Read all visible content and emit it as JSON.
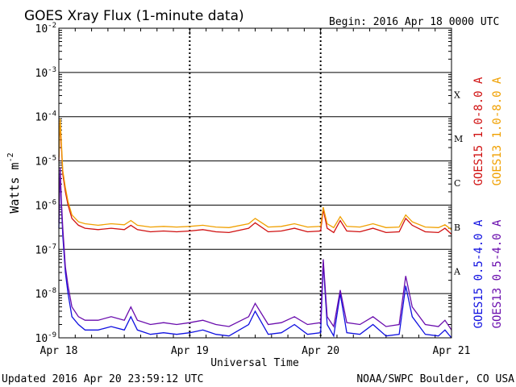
{
  "header": {
    "title": "GOES Xray Flux (1-minute data)",
    "begin": "Begin:  2016 Apr 18 0000 UTC"
  },
  "footer": {
    "updated": "Updated 2016 Apr 20 23:59:12 UTC",
    "credit": "NOAA/SWPC Boulder, CO USA"
  },
  "chart_data": {
    "type": "line",
    "title": "GOES Xray Flux (1-minute data)",
    "xlabel": "Universal Time",
    "ylabel": "Watts m",
    "ylabel_sup": "-2",
    "yscale": "log",
    "ylim": [
      1e-09,
      0.01
    ],
    "xlim": [
      0,
      3
    ],
    "x_unit": "days since 2016 Apr 18 0000 UTC",
    "x_ticks": [
      {
        "x": 0,
        "label": "Apr 18"
      },
      {
        "x": 1,
        "label": "Apr 19"
      },
      {
        "x": 2,
        "label": "Apr 20"
      },
      {
        "x": 3,
        "label": "Apr 21"
      }
    ],
    "y_ticks": [
      {
        "exp": -9,
        "base": "10",
        "sup": "-9"
      },
      {
        "exp": -8,
        "base": "10",
        "sup": "-8"
      },
      {
        "exp": -7,
        "base": "10",
        "sup": "-7"
      },
      {
        "exp": -6,
        "base": "10",
        "sup": "-6"
      },
      {
        "exp": -5,
        "base": "10",
        "sup": "-5"
      },
      {
        "exp": -4,
        "base": "10",
        "sup": "-4"
      },
      {
        "exp": -3,
        "base": "10",
        "sup": "-3"
      },
      {
        "exp": -2,
        "base": "10",
        "sup": "-2"
      }
    ],
    "flare_classes": [
      {
        "label": "A",
        "exp": -7.5
      },
      {
        "label": "B",
        "exp": -6.5
      },
      {
        "label": "C",
        "exp": -5.5
      },
      {
        "label": "M",
        "exp": -4.5
      },
      {
        "label": "X",
        "exp": -3.5
      }
    ],
    "grid": true,
    "legend_right_upper": [
      {
        "name": "GOES15 1.0-8.0 A",
        "color": "#d01010"
      },
      {
        "name": "GOES13 1.0-8.0 A",
        "color": "#f0a000"
      }
    ],
    "legend_right_lower": [
      {
        "name": "GOES15 0.5-4.0 A",
        "color": "#1010e0"
      },
      {
        "name": "GOES13 0.5-4.0 A",
        "color": "#6a0dad"
      }
    ],
    "series": [
      {
        "name": "GOES15 1.0-8.0 A",
        "color": "#d01010",
        "x": [
          0,
          0.01,
          0.02,
          0.03,
          0.05,
          0.07,
          0.1,
          0.15,
          0.2,
          0.3,
          0.4,
          0.5,
          0.55,
          0.6,
          0.7,
          0.8,
          0.9,
          1.0,
          1.1,
          1.2,
          1.3,
          1.45,
          1.5,
          1.6,
          1.7,
          1.8,
          1.9,
          2.0,
          2.02,
          2.05,
          2.1,
          2.15,
          2.2,
          2.3,
          2.4,
          2.5,
          2.6,
          2.65,
          2.7,
          2.8,
          2.9,
          2.95,
          3.0
        ],
        "y": [
          1e-05,
          8e-05,
          2e-05,
          5e-06,
          2e-06,
          1e-06,
          5e-07,
          3.5e-07,
          3e-07,
          2.8e-07,
          3e-07,
          2.8e-07,
          3.5e-07,
          2.8e-07,
          2.5e-07,
          2.6e-07,
          2.5e-07,
          2.6e-07,
          2.8e-07,
          2.5e-07,
          2.4e-07,
          3e-07,
          4e-07,
          2.5e-07,
          2.6e-07,
          3e-07,
          2.5e-07,
          2.6e-07,
          8e-07,
          3e-07,
          2.4e-07,
          4.5e-07,
          2.6e-07,
          2.5e-07,
          3e-07,
          2.4e-07,
          2.5e-07,
          5e-07,
          3.5e-07,
          2.5e-07,
          2.4e-07,
          3e-07,
          2.2e-07
        ]
      },
      {
        "name": "GOES13 1.0-8.0 A",
        "color": "#f0a000",
        "x": [
          0,
          0.01,
          0.02,
          0.03,
          0.05,
          0.07,
          0.1,
          0.15,
          0.2,
          0.3,
          0.4,
          0.5,
          0.55,
          0.6,
          0.7,
          0.8,
          0.9,
          1.0,
          1.1,
          1.2,
          1.3,
          1.45,
          1.5,
          1.6,
          1.7,
          1.8,
          1.9,
          2.0,
          2.02,
          2.05,
          2.1,
          2.15,
          2.2,
          2.3,
          2.4,
          2.5,
          2.6,
          2.65,
          2.7,
          2.8,
          2.9,
          2.95,
          3.0
        ],
        "y": [
          1.2e-05,
          9e-05,
          2.5e-05,
          6e-06,
          2.5e-06,
          1.2e-06,
          6e-07,
          4.2e-07,
          3.8e-07,
          3.5e-07,
          3.8e-07,
          3.6e-07,
          4.5e-07,
          3.5e-07,
          3.2e-07,
          3.3e-07,
          3.2e-07,
          3.3e-07,
          3.5e-07,
          3.2e-07,
          3.1e-07,
          3.8e-07,
          5e-07,
          3.2e-07,
          3.3e-07,
          3.8e-07,
          3.2e-07,
          3.3e-07,
          9e-07,
          3.8e-07,
          3.1e-07,
          5.5e-07,
          3.3e-07,
          3.2e-07,
          3.8e-07,
          3.1e-07,
          3.2e-07,
          6e-07,
          4.2e-07,
          3.2e-07,
          3.1e-07,
          3.6e-07,
          2.8e-07
        ]
      },
      {
        "name": "GOES15 0.5-4.0 A",
        "color": "#1010e0",
        "x": [
          0,
          0.01,
          0.02,
          0.03,
          0.05,
          0.07,
          0.1,
          0.15,
          0.2,
          0.3,
          0.4,
          0.5,
          0.55,
          0.6,
          0.7,
          0.8,
          0.9,
          1.0,
          1.1,
          1.2,
          1.3,
          1.45,
          1.5,
          1.6,
          1.7,
          1.8,
          1.9,
          2.0,
          2.02,
          2.05,
          2.1,
          2.15,
          2.2,
          2.3,
          2.4,
          2.5,
          2.6,
          2.65,
          2.7,
          2.8,
          2.9,
          2.95,
          3.0
        ],
        "y": [
          3e-07,
          6e-06,
          1e-06,
          2e-07,
          3e-08,
          1e-08,
          3e-09,
          2e-09,
          1.5e-09,
          1.5e-09,
          1.8e-09,
          1.5e-09,
          3e-09,
          1.5e-09,
          1.2e-09,
          1.3e-09,
          1.2e-09,
          1.3e-09,
          1.5e-09,
          1.2e-09,
          1.1e-09,
          2e-09,
          4e-09,
          1.2e-09,
          1.3e-09,
          2e-09,
          1.2e-09,
          1.3e-09,
          5e-08,
          2e-09,
          1.1e-09,
          1e-08,
          1.3e-09,
          1.2e-09,
          2e-09,
          1.1e-09,
          1.2e-09,
          1.5e-08,
          3e-09,
          1.2e-09,
          1.1e-09,
          1.5e-09,
          1e-09
        ]
      },
      {
        "name": "GOES13 0.5-4.0 A",
        "color": "#6a0dad",
        "x": [
          0,
          0.01,
          0.02,
          0.03,
          0.05,
          0.07,
          0.1,
          0.15,
          0.2,
          0.3,
          0.4,
          0.5,
          0.55,
          0.6,
          0.7,
          0.8,
          0.9,
          1.0,
          1.1,
          1.2,
          1.3,
          1.45,
          1.5,
          1.6,
          1.7,
          1.8,
          1.9,
          2.0,
          2.02,
          2.05,
          2.1,
          2.15,
          2.2,
          2.3,
          2.4,
          2.5,
          2.6,
          2.65,
          2.7,
          2.8,
          2.9,
          2.95,
          3.0
        ],
        "y": [
          4e-07,
          7e-06,
          1.2e-06,
          3e-07,
          4e-08,
          1.5e-08,
          5e-09,
          3e-09,
          2.5e-09,
          2.5e-09,
          3e-09,
          2.5e-09,
          5e-09,
          2.5e-09,
          2e-09,
          2.2e-09,
          2e-09,
          2.2e-09,
          2.5e-09,
          2e-09,
          1.8e-09,
          3e-09,
          6e-09,
          2e-09,
          2.2e-09,
          3e-09,
          2e-09,
          2.2e-09,
          6e-08,
          3e-09,
          1.8e-09,
          1.2e-08,
          2.2e-09,
          2e-09,
          3e-09,
          1.8e-09,
          2e-09,
          2.5e-08,
          5e-09,
          2e-09,
          1.8e-09,
          2.5e-09,
          1.5e-09
        ]
      }
    ]
  }
}
